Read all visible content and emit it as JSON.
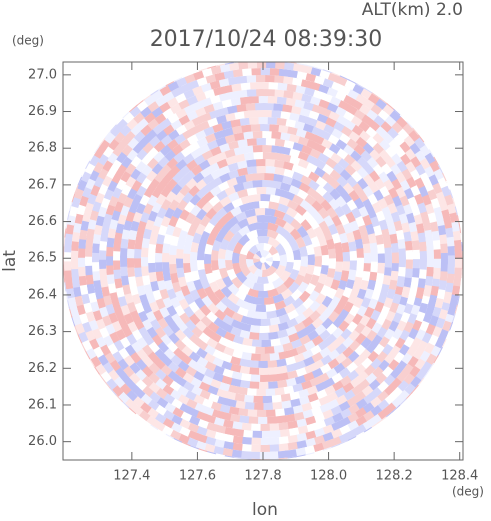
{
  "chart_data": {
    "type": "heatmap",
    "title": "2017/10/24 08:39:30",
    "subtitle": "ALT(km) 2.0",
    "x_label": "lon",
    "y_label": "lat",
    "x_unit": "(deg)",
    "y_unit": "(deg)",
    "xlim": [
      127.19,
      128.41
    ],
    "ylim": [
      25.95,
      27.035
    ],
    "xticks": [
      127.4,
      127.6,
      127.8,
      {
        "value": 128.0,
        "label": "128.0"
      },
      128.2,
      128.4
    ],
    "yticks": [
      {
        "value": 26.0,
        "label": "26.0"
      },
      26.1,
      26.2,
      26.3,
      26.4,
      26.5,
      26.6,
      26.7,
      26.8,
      26.9,
      {
        "value": 27.0,
        "label": "27.0"
      }
    ]
  }
}
